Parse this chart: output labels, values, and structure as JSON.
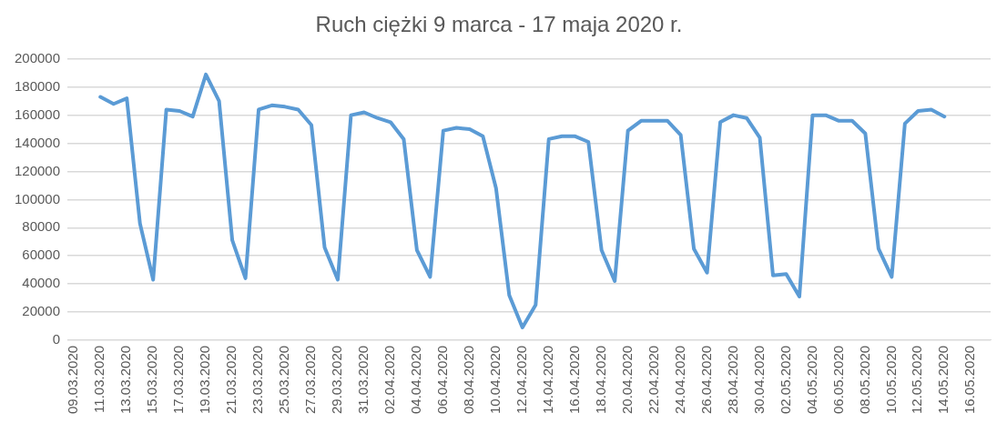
{
  "chart_data": {
    "type": "line",
    "title": "Ruch ciężki 9 marca - 17 maja 2020 r.",
    "categories": [
      "09.03.2020",
      null,
      "11.03.2020",
      null,
      "13.03.2020",
      null,
      "15.03.2020",
      null,
      "17.03.2020",
      null,
      "19.03.2020",
      null,
      "21.03.2020",
      null,
      "23.03.2020",
      null,
      "25.03.2020",
      null,
      "27.03.2020",
      null,
      "29.03.2020",
      null,
      "31.03.2020",
      null,
      "02.04.2020",
      null,
      "04.04.2020",
      null,
      "06.04.2020",
      null,
      "08.04.2020",
      null,
      "10.04.2020",
      null,
      "12.04.2020",
      null,
      "14.04.2020",
      null,
      "16.04.2020",
      null,
      "18.04.2020",
      null,
      "20.04.2020",
      null,
      "22.04.2020",
      null,
      "24.04.2020",
      null,
      "26.04.2020",
      null,
      "28.04.2020",
      null,
      "30.04.2020",
      null,
      "02.05.2020",
      null,
      "04.05.2020",
      null,
      "06.05.2020",
      null,
      "08.05.2020",
      null,
      "10.05.2020",
      null,
      "12.05.2020",
      null,
      "14.05.2020",
      null,
      "16.05.2020",
      null
    ],
    "series": [
      {
        "color": "#5b9bd5",
        "values": [
          null,
          null,
          173000,
          168000,
          172000,
          83000,
          43000,
          164000,
          163000,
          159000,
          189000,
          170000,
          71000,
          44000,
          164000,
          167000,
          166000,
          164000,
          153000,
          66000,
          43000,
          160000,
          162000,
          158000,
          155000,
          143000,
          64000,
          45000,
          149000,
          151000,
          150000,
          145000,
          108000,
          32000,
          9000,
          25000,
          143000,
          145000,
          145000,
          141000,
          64000,
          42000,
          149000,
          156000,
          156000,
          156000,
          146000,
          65000,
          48000,
          155000,
          160000,
          158000,
          144000,
          46000,
          47000,
          31000,
          160000,
          160000,
          156000,
          156000,
          147000,
          65000,
          45000,
          154000,
          163000,
          164000,
          159000,
          null,
          null,
          null
        ]
      }
    ],
    "ylim": [
      0,
      200000
    ],
    "yticks": [
      0,
      20000,
      40000,
      60000,
      80000,
      100000,
      120000,
      140000,
      160000,
      180000,
      200000
    ],
    "grid": "y",
    "marker": "none"
  }
}
